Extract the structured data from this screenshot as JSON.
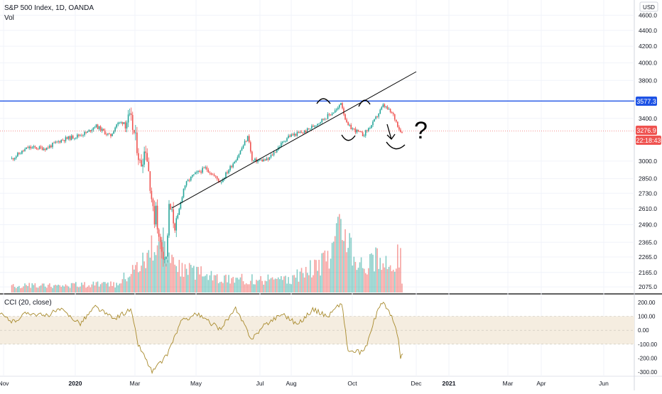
{
  "header": {
    "title": "S&P 500 Index, 1D, OANDA",
    "volume_label": "Vol",
    "currency": "USD"
  },
  "cci_panel": {
    "title": "CCI (20, close)"
  },
  "price_labels": {
    "horizontal_level": "3577.3",
    "last_price": "3276.9",
    "countdown": "22:18:43"
  },
  "colors": {
    "up": "#26a69a",
    "down": "#ef5350",
    "horizontal_line": "#1e53e5",
    "last_price": "#ef5350",
    "cci_line": "#a88a2c",
    "cci_band": "#f5ede0"
  },
  "chart_data": [
    {
      "type": "candlestick",
      "title": "S&P 500 Index, 1D, OANDA",
      "x": [
        "Nov",
        "2020",
        "Mar",
        "May",
        "Jul",
        "Aug",
        "Oct",
        "Dec",
        "2021",
        "Mar",
        "Apr",
        "Jun"
      ],
      "y_ticks": [
        "4600.0",
        "4400.0",
        "4200.0",
        "4000.0",
        "3800.0",
        "3400.0",
        "3000.0",
        "2850.0",
        "2730.0",
        "2610.0",
        "2490.0",
        "2365.0",
        "2265.0",
        "2165.0",
        "2075.0"
      ],
      "y_scale": "log",
      "ylim": [
        2050,
        4750
      ],
      "series": [
        {
          "values": [
            [
              "2019-10-31",
              3020
            ],
            [
              "2019-11-15",
              3120
            ],
            [
              "2019-12-02",
              3115
            ],
            [
              "2019-12-16",
              3190
            ],
            [
              "2019-12-31",
              3230
            ],
            [
              "2020-01-10",
              3265
            ],
            [
              "2020-01-17",
              3330
            ],
            [
              "2020-01-31",
              3225
            ],
            [
              "2020-02-06",
              3345
            ],
            [
              "2020-02-19",
              3386
            ],
            [
              "2020-02-25",
              3130
            ],
            [
              "2020-02-28",
              2954
            ],
            [
              "2020-03-04",
              3130
            ],
            [
              "2020-03-09",
              2746
            ],
            [
              "2020-03-12",
              2480
            ],
            [
              "2020-03-13",
              2711
            ],
            [
              "2020-03-16",
              2386
            ],
            [
              "2020-03-20",
              2305
            ],
            [
              "2020-03-23",
              2237
            ],
            [
              "2020-03-26",
              2630
            ],
            [
              "2020-04-01",
              2470
            ],
            [
              "2020-04-09",
              2790
            ],
            [
              "2020-04-17",
              2875
            ],
            [
              "2020-04-29",
              2940
            ],
            [
              "2020-05-13",
              2820
            ],
            [
              "2020-05-29",
              3045
            ],
            [
              "2020-06-08",
              3232
            ],
            [
              "2020-06-11",
              3002
            ],
            [
              "2020-06-26",
              3010
            ],
            [
              "2020-07-15",
              3226
            ],
            [
              "2020-07-31",
              3271
            ],
            [
              "2020-08-14",
              3372
            ],
            [
              "2020-08-31",
              3500
            ],
            [
              "2020-09-02",
              3580
            ],
            [
              "2020-09-08",
              3331
            ],
            [
              "2020-09-23",
              3237
            ],
            [
              "2020-10-02",
              3348
            ],
            [
              "2020-10-12",
              3534
            ],
            [
              "2020-10-21",
              3435
            ],
            [
              "2020-10-28",
              3271
            ],
            [
              "2020-10-30",
              3277
            ]
          ]
        },
        {
          "name": "Vol",
          "values": [
            [
              "2019-11-15",
              0.1
            ],
            [
              "2020-02-05",
              0.12
            ],
            [
              "2020-02-28",
              0.45
            ],
            [
              "2020-03-10",
              0.62
            ],
            [
              "2020-03-16",
              0.8
            ],
            [
              "2020-04-03",
              0.35
            ],
            [
              "2020-05-15",
              0.2
            ],
            [
              "2020-07-15",
              0.18
            ],
            [
              "2020-08-20",
              0.45
            ],
            [
              "2020-09-03",
              1.0
            ],
            [
              "2020-09-08",
              0.95
            ],
            [
              "2020-09-15",
              0.55
            ],
            [
              "2020-09-25",
              0.4
            ],
            [
              "2020-10-05",
              0.5
            ],
            [
              "2020-10-16",
              0.38
            ],
            [
              "2020-10-28",
              0.6
            ]
          ]
        }
      ],
      "horizontal_line": 3577.3,
      "last_price": 3276.9,
      "annotations": [
        "?"
      ]
    },
    {
      "type": "line",
      "title": "CCI (20, close)",
      "y_ticks": [
        "200.00",
        "100.00",
        "0.00",
        "-100.00",
        "-200.00",
        "-300.00"
      ],
      "ylim": [
        -320,
        240
      ],
      "band": [
        -100,
        100
      ],
      "series": [
        {
          "values": [
            [
              "2019-10-15",
              140
            ],
            [
              "2019-11-01",
              60
            ],
            [
              "2019-11-15",
              130
            ],
            [
              "2019-12-01",
              100
            ],
            [
              "2019-12-15",
              150
            ],
            [
              "2020-01-03",
              50
            ],
            [
              "2020-01-17",
              170
            ],
            [
              "2020-02-03",
              80
            ],
            [
              "2020-02-19",
              150
            ],
            [
              "2020-02-26",
              -100
            ],
            [
              "2020-03-05",
              -220
            ],
            [
              "2020-03-10",
              -300
            ],
            [
              "2020-03-23",
              -190
            ],
            [
              "2020-04-06",
              60
            ],
            [
              "2020-04-20",
              120
            ],
            [
              "2020-05-12",
              10
            ],
            [
              "2020-05-27",
              150
            ],
            [
              "2020-06-11",
              -60
            ],
            [
              "2020-06-25",
              50
            ],
            [
              "2020-07-10",
              120
            ],
            [
              "2020-07-24",
              40
            ],
            [
              "2020-08-07",
              150
            ],
            [
              "2020-08-21",
              100
            ],
            [
              "2020-09-03",
              200
            ],
            [
              "2020-09-09",
              -150
            ],
            [
              "2020-09-24",
              -160
            ],
            [
              "2020-10-06",
              130
            ],
            [
              "2020-10-12",
              210
            ],
            [
              "2020-10-21",
              70
            ],
            [
              "2020-10-26",
              -60
            ],
            [
              "2020-10-28",
              -210
            ],
            [
              "2020-10-30",
              -170
            ]
          ]
        }
      ]
    }
  ]
}
